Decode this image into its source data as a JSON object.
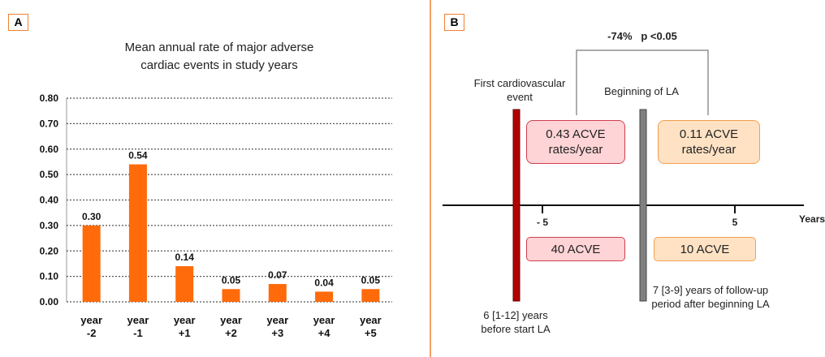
{
  "chart_data": {
    "type": "bar",
    "panel_label": "A",
    "title": "Mean annual rate of major adverse cardiac events in study years",
    "categories": [
      "year -2",
      "year -1",
      "year +1",
      "year +2",
      "year +3",
      "year +4",
      "year +5"
    ],
    "values": [
      0.3,
      0.54,
      0.14,
      0.05,
      0.07,
      0.04,
      0.05
    ],
    "value_labels": [
      "0.30",
      "0.54",
      "0.14",
      "0.05",
      "0.07",
      "0.04",
      "0.05"
    ],
    "color": "#ff6a0a",
    "ylim": [
      0,
      0.8
    ],
    "yticks": [
      {
        "value": 0,
        "label": "0.00"
      },
      {
        "value": 0.1,
        "label": "0.10"
      },
      {
        "value": 0.2,
        "label": "0.20"
      },
      {
        "value": 0.3,
        "label": "0.30"
      },
      {
        "value": 0.4,
        "label": "0.40"
      },
      {
        "value": 0.5,
        "label": "0.50"
      },
      {
        "value": 0.6,
        "label": "0.60"
      },
      {
        "value": 0.7,
        "label": "0.70"
      },
      {
        "value": 0.8,
        "label": "0.80"
      }
    ],
    "grid": true
  },
  "diagram": {
    "panel_label": "B",
    "comparison": "-74%   p <0.05",
    "first_event": "First cardiovascular event",
    "beginning": "Beginning of LA",
    "rate_before": "0.43 ACVE rates/year",
    "rate_after": "0.11 ACVE rates/year",
    "tick_minus": "- 5",
    "tick_plus": "5",
    "axis_label": "Years",
    "count_before": "40 ACVE",
    "count_after": "10 ACVE",
    "period_before": "6 [1-12] years before start LA",
    "period_after": "7 [3-9] years of follow-up period after beginning LA"
  }
}
